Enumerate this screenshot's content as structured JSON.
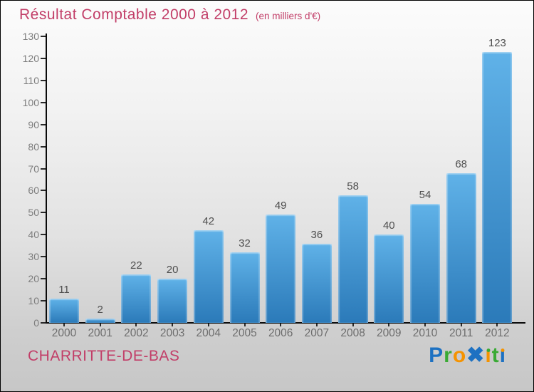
{
  "header": {
    "title_main": "Résultat Comptable 2000 à 2012",
    "title_unit": "(en milliers d'€)"
  },
  "footer": {
    "commune": "CHARRITTE-DE-BAS",
    "logo_brand": "Proxiti"
  },
  "logo_letters": [
    {
      "ch": "P",
      "color": "#1d71c2"
    },
    {
      "ch": "r",
      "color": "#3aaa35"
    },
    {
      "ch": "o",
      "color": "#f59300"
    },
    {
      "ch": "✖",
      "color": "#1d71c2"
    },
    {
      "ch": "ı",
      "color": "#f59300",
      "dot": "#3aaa35"
    },
    {
      "ch": "t",
      "color": "#3aaa35"
    },
    {
      "ch": "ı",
      "color": "#1d71c2",
      "dot": "#f59300"
    }
  ],
  "colors": {
    "title_pink": "#c23e68",
    "axis_line": "#0a0a0a",
    "bar_top": "#60b2e8",
    "bar_bottom": "#2b7ab9",
    "value_label": "#4f4f4f",
    "y_tick_label": "#7d7d7d",
    "x_tick_label": "#6e6e6e"
  },
  "chart_data": {
    "type": "bar",
    "title": "Résultat Comptable 2000 à 2012",
    "subtitle": "(en milliers d'€)",
    "categories": [
      "2000",
      "2001",
      "2002",
      "2003",
      "2004",
      "2005",
      "2006",
      "2007",
      "2008",
      "2009",
      "2010",
      "2011",
      "2012"
    ],
    "values": [
      11,
      2,
      22,
      20,
      42,
      32,
      49,
      36,
      58,
      40,
      54,
      68,
      123
    ],
    "ylim": [
      0,
      130
    ],
    "ytick_step": 10,
    "grid": false,
    "legend_position": "none",
    "value_labels_shown": true,
    "footer_left": "CHARRITTE-DE-BAS",
    "footer_right_brand": "Proxiti"
  }
}
